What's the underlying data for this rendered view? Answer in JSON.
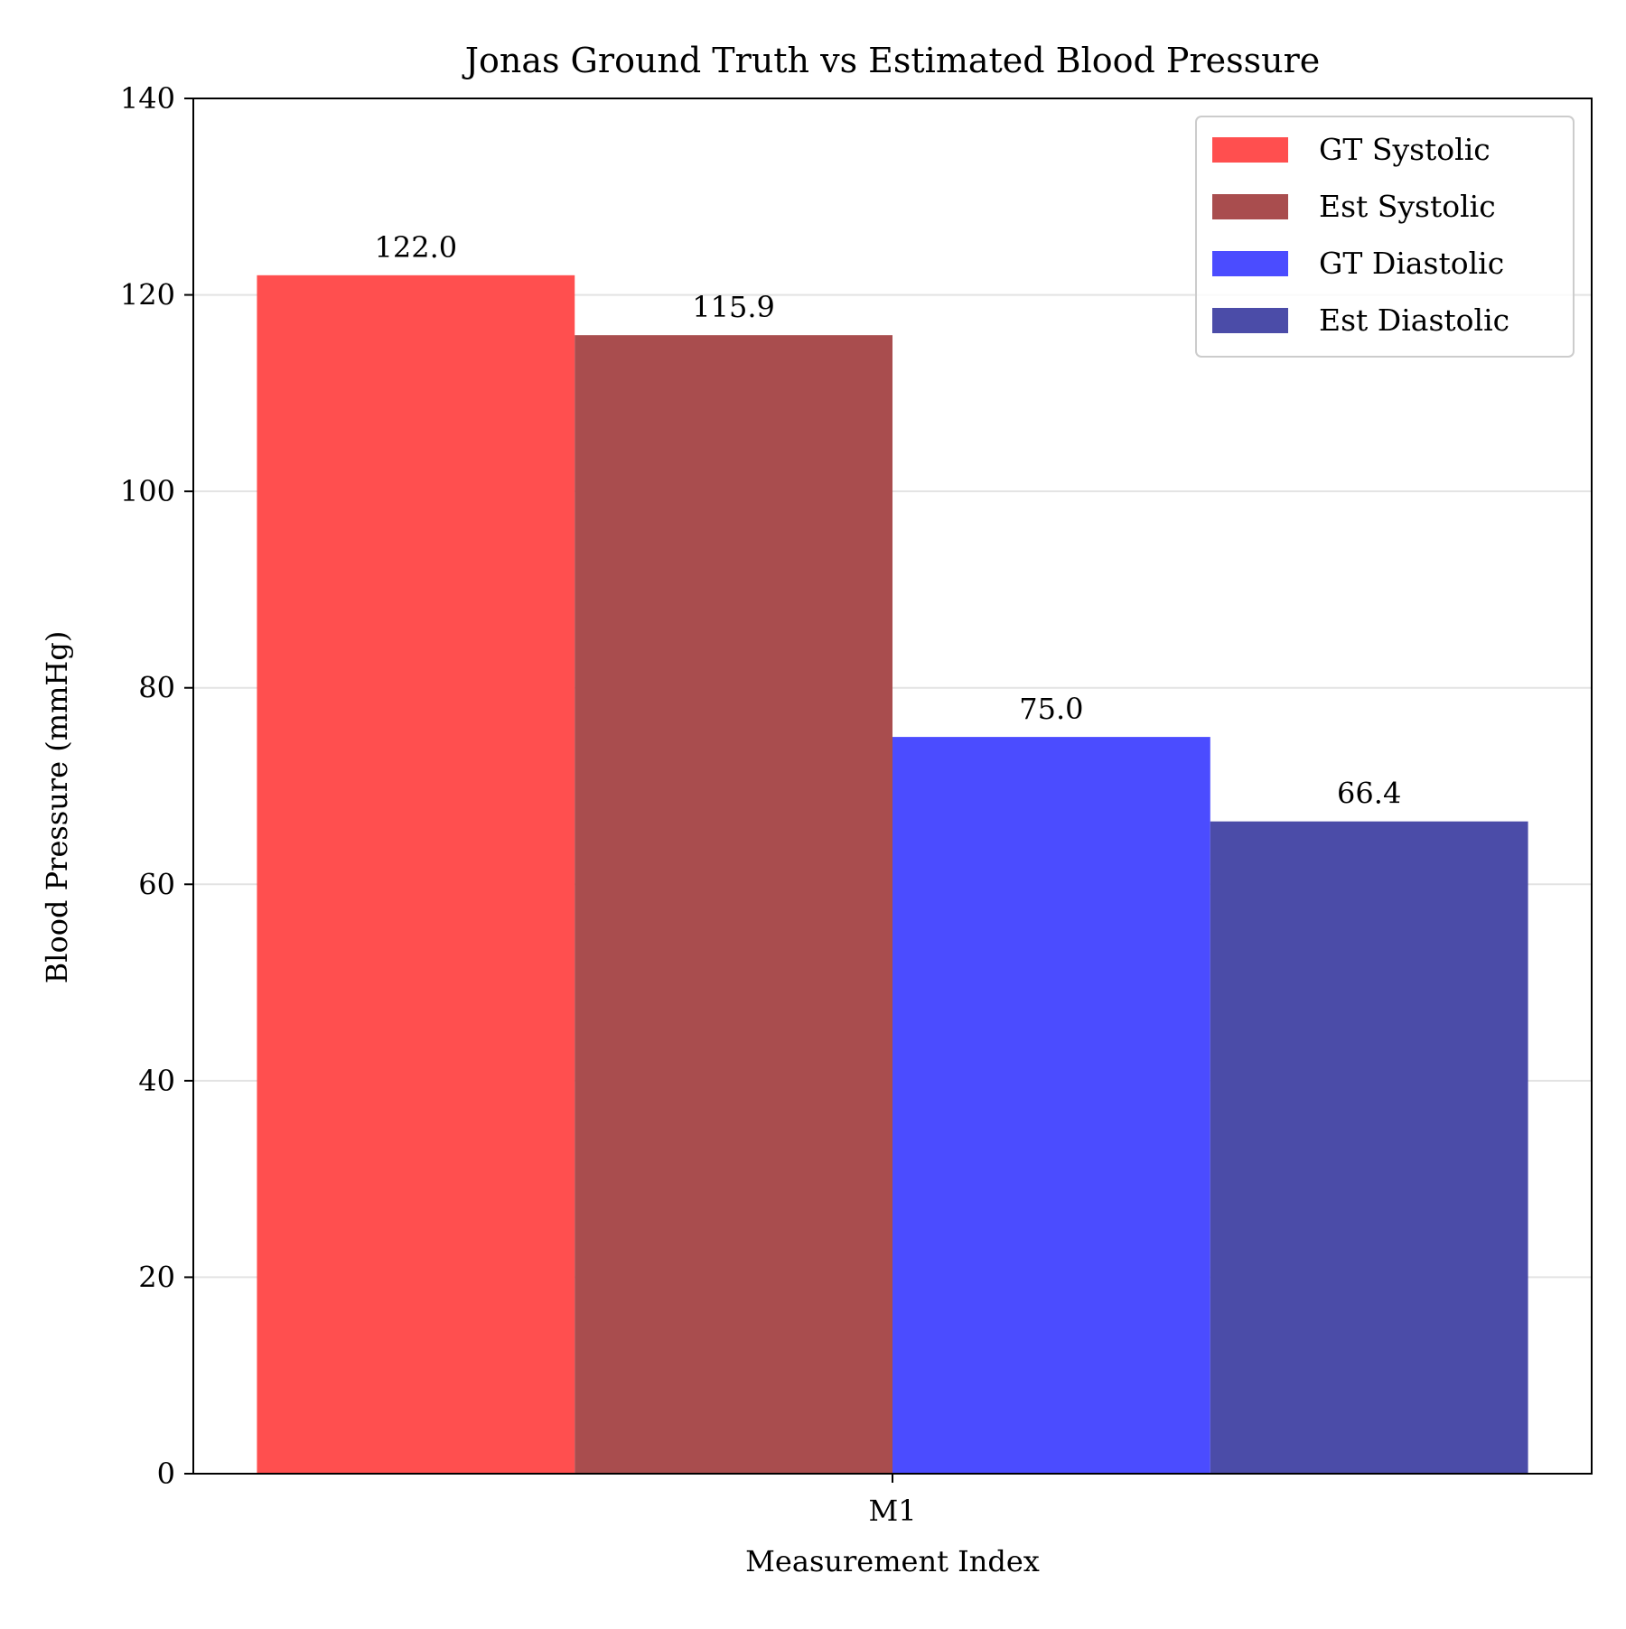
{
  "chart_data": {
    "type": "bar",
    "title": "Jonas Ground Truth vs Estimated Blood Pressure",
    "xlabel": "Measurement Index",
    "ylabel": "Blood Pressure (mmHg)",
    "categories": [
      "M1"
    ],
    "ylim": [
      0,
      140
    ],
    "yticks": [
      0,
      20,
      40,
      60,
      80,
      100,
      120,
      140
    ],
    "grid": "horizontal",
    "legend_position": "top-right",
    "series": [
      {
        "name": "GT Systolic",
        "values": [
          122.0
        ],
        "value_labels": [
          "122.0"
        ],
        "color": "#ff4f4f"
      },
      {
        "name": "Est Systolic",
        "values": [
          115.9
        ],
        "value_labels": [
          "115.9"
        ],
        "color": "#a94d4e"
      },
      {
        "name": "GT Diastolic",
        "values": [
          75.0
        ],
        "value_labels": [
          "75.0"
        ],
        "color": "#4b4cff"
      },
      {
        "name": "Est Diastolic",
        "values": [
          66.4
        ],
        "value_labels": [
          "66.4"
        ],
        "color": "#4b4ca8"
      }
    ]
  }
}
